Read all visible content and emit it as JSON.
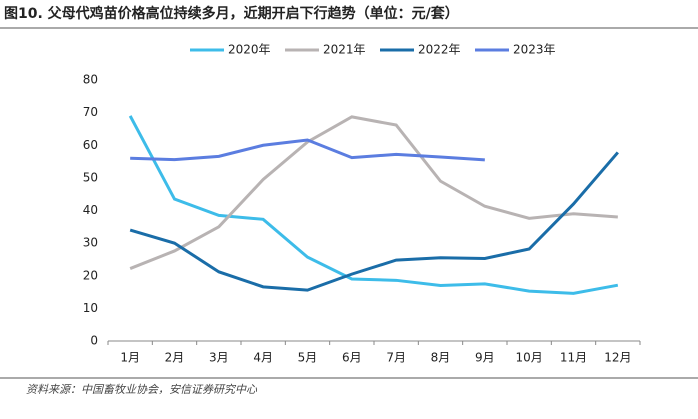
{
  "chart_data": {
    "type": "line",
    "title": "图10. 父母代鸡苗价格高位持续多月，近期开启下行趋势（单位：元/套）",
    "source": "资料来源：中国畜牧业协会，安信证券研究中心",
    "categories": [
      "1月",
      "2月",
      "3月",
      "4月",
      "5月",
      "6月",
      "7月",
      "8月",
      "9月",
      "10月",
      "11月",
      "12月"
    ],
    "series": [
      {
        "name": "2020年",
        "color": "#3dbce9",
        "values": [
          69,
          43.5,
          38.5,
          37.3,
          25.7,
          19,
          18.6,
          17,
          17.5,
          15.3,
          14.6,
          17.1
        ]
      },
      {
        "name": "2021年",
        "color": "#b8b3b3",
        "values": [
          22.2,
          27.6,
          35,
          49.5,
          61,
          68.7,
          66.2,
          49,
          41.3,
          37.6,
          39,
          38
        ]
      },
      {
        "name": "2022年",
        "color": "#1a6da8",
        "values": [
          34,
          30,
          21.2,
          16.6,
          15.6,
          20.5,
          24.8,
          25.5,
          25.3,
          28.2,
          42,
          57.8
        ]
      },
      {
        "name": "2023年",
        "color": "#5b7de0",
        "values": [
          56,
          55.6,
          56.6,
          60,
          61.6,
          56.2,
          57.2,
          56.4,
          55.5,
          null,
          null,
          null
        ]
      }
    ],
    "ylim": [
      0,
      80
    ],
    "yticks": [
      0,
      10,
      20,
      30,
      40,
      50,
      60,
      70,
      80
    ],
    "grid": false,
    "legend": "top"
  }
}
